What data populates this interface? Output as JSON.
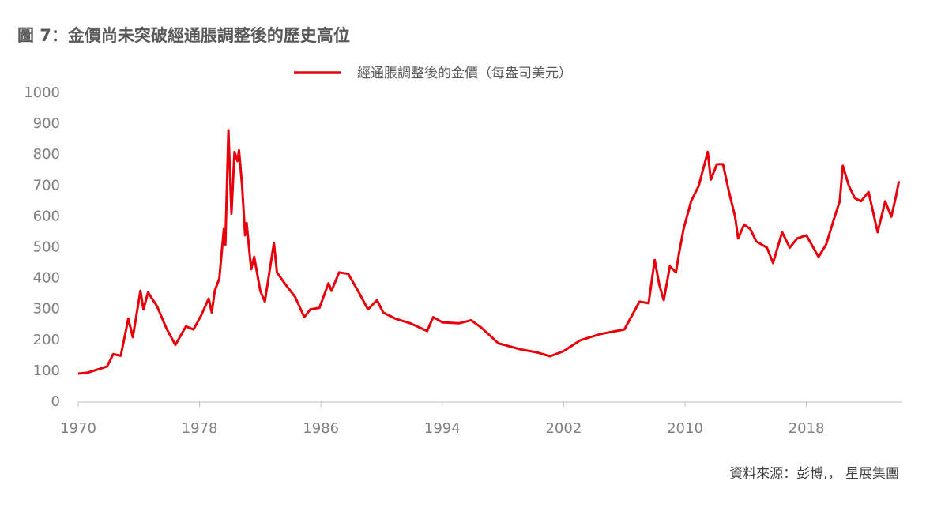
{
  "chart_data": {
    "type": "line",
    "title": "圖 7：金價尚未突破經通脹調整後的歷史高位",
    "source": "資料來源：彭博,， 星展集團",
    "xlim": [
      1970,
      2024.3
    ],
    "xticks": [
      1970,
      1978,
      1986,
      1994,
      2002,
      2010,
      2018
    ],
    "ylim": [
      0,
      1000
    ],
    "yticks": [
      0,
      100,
      200,
      300,
      400,
      500,
      600,
      700,
      800,
      900,
      1000
    ],
    "legend": "top",
    "series": [
      {
        "name": "經通脹調整後的金價（每盎司美元）",
        "color": "#e8000b",
        "x": [
          1970.0,
          1970.6,
          1971.9,
          1972.3,
          1972.8,
          1973.3,
          1973.6,
          1974.1,
          1974.3,
          1974.6,
          1975.2,
          1975.8,
          1976.4,
          1977.1,
          1977.6,
          1978.1,
          1978.6,
          1978.8,
          1979.0,
          1979.3,
          1979.6,
          1979.7,
          1979.9,
          1980.1,
          1980.3,
          1980.5,
          1980.6,
          1980.8,
          1981.0,
          1981.1,
          1981.4,
          1981.6,
          1982.0,
          1982.3,
          1982.6,
          1982.9,
          1983.1,
          1983.6,
          1984.3,
          1984.9,
          1985.3,
          1985.9,
          1986.5,
          1986.7,
          1987.2,
          1987.8,
          1988.5,
          1989.1,
          1989.7,
          1990.1,
          1990.9,
          1991.9,
          1993.0,
          1993.4,
          1994.0,
          1995.1,
          1995.9,
          1996.6,
          1997.7,
          1999.2,
          2000.3,
          2001.1,
          2002.0,
          2003.1,
          2004.4,
          2006.0,
          2006.5,
          2007.0,
          2007.6,
          2008.0,
          2008.3,
          2008.6,
          2009.0,
          2009.4,
          2009.6,
          2009.9,
          2010.4,
          2010.9,
          2011.5,
          2011.7,
          2012.1,
          2012.5,
          2012.9,
          2013.3,
          2013.5,
          2013.9,
          2014.3,
          2014.7,
          2015.4,
          2015.8,
          2016.4,
          2016.9,
          2017.4,
          2018.0,
          2018.8,
          2019.3,
          2019.8,
          2020.2,
          2020.4,
          2020.8,
          2021.2,
          2021.6,
          2022.1,
          2022.7,
          2023.2,
          2023.6,
          2023.9,
          2024.1
        ],
        "values": [
          92,
          95,
          115,
          155,
          150,
          270,
          210,
          360,
          300,
          355,
          310,
          240,
          185,
          245,
          235,
          280,
          335,
          290,
          360,
          400,
          560,
          510,
          880,
          610,
          810,
          780,
          815,
          700,
          540,
          580,
          430,
          470,
          360,
          325,
          420,
          515,
          420,
          385,
          340,
          275,
          300,
          305,
          385,
          360,
          420,
          415,
          355,
          300,
          330,
          290,
          270,
          255,
          230,
          275,
          258,
          255,
          265,
          240,
          190,
          170,
          160,
          148,
          165,
          200,
          220,
          235,
          280,
          325,
          320,
          460,
          380,
          330,
          440,
          420,
          480,
          560,
          650,
          700,
          810,
          720,
          770,
          770,
          680,
          600,
          530,
          575,
          560,
          520,
          500,
          450,
          550,
          500,
          530,
          540,
          470,
          510,
          590,
          650,
          765,
          700,
          660,
          650,
          680,
          550,
          650,
          600,
          665,
          715
        ]
      }
    ]
  }
}
